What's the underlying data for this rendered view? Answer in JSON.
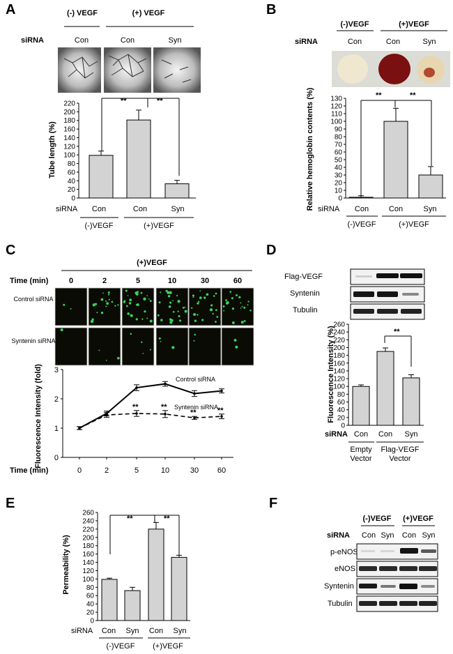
{
  "panelA": {
    "letter": "A",
    "minus_vegf": "(-) VEGF",
    "plus_vegf": "(+) VEGF",
    "sirna": "siRNA",
    "lanes": [
      "Con",
      "Con",
      "Syn"
    ],
    "group_minus": "(-)VEGF",
    "group_plus": "(+)VEGF",
    "sig": [
      "**",
      "**"
    ]
  },
  "panelB": {
    "letter": "B",
    "minus_vegf": "(-)VEGF",
    "plus_vegf": "(+)VEGF",
    "sirna": "siRNA",
    "lanes": [
      "Con",
      "Con",
      "Syn"
    ],
    "group_minus": "(-)VEGF",
    "group_plus": "(+)VEGF",
    "sig": [
      "**",
      "**"
    ]
  },
  "panelC": {
    "letter": "C",
    "plus_vegf": "(+)VEGF",
    "time_label": "Time (min)",
    "row_control": "Control siRNA",
    "row_syntenin": "Syntenin siRNA",
    "series_control": "Control siRNA",
    "series_syntenin": "Syntenin siRNA",
    "sig": "**"
  },
  "panelD": {
    "letter": "D",
    "blots": [
      "Flag-VEGF",
      "Syntenin",
      "Tubulin"
    ],
    "sirna": "siRNA",
    "lanes": [
      "Con",
      "Con",
      "Syn"
    ],
    "group_empty": "Empty\nVector",
    "group_flag": "Flag-VEGF\nVector",
    "sig": "**"
  },
  "panelE": {
    "letter": "E",
    "sirna": "siRNA",
    "lanes": [
      "Con",
      "Syn",
      "Con",
      "Syn"
    ],
    "group_minus": "(-)VEGF",
    "group_plus": "(+)VEGF",
    "sig": [
      "**",
      "**"
    ]
  },
  "panelF": {
    "letter": "F",
    "minus_vegf": "(-)VEGF",
    "plus_vegf": "(+)VEGF",
    "sirna": "siRNA",
    "lanes": [
      "Con",
      "Syn",
      "Con",
      "Syn"
    ],
    "blots": [
      "p-eNOS",
      "eNOS",
      "Syntenin",
      "Tubulin"
    ]
  },
  "chart_data": [
    {
      "id": "A",
      "type": "bar",
      "categories": [
        "Con",
        "Con",
        "Syn"
      ],
      "values": [
        99,
        181,
        33
      ],
      "errors": [
        10,
        23,
        8
      ],
      "ylabel": "Tube length (%)",
      "ylim": [
        0,
        220
      ],
      "yticks": [
        0,
        20,
        40,
        60,
        80,
        100,
        120,
        140,
        160,
        180,
        200,
        220
      ]
    },
    {
      "id": "B",
      "type": "bar",
      "categories": [
        "Con",
        "Con",
        "Syn"
      ],
      "values": [
        1,
        100,
        30
      ],
      "errors": [
        2,
        17,
        11
      ],
      "ylabel": "Relative hemoglobin contents (%)",
      "ylim": [
        0,
        130
      ],
      "yticks": [
        0,
        10,
        20,
        30,
        40,
        50,
        60,
        70,
        80,
        90,
        100,
        110,
        120,
        130
      ]
    },
    {
      "id": "C",
      "type": "line",
      "x": [
        "0",
        "2",
        "5",
        "10",
        "30",
        "60"
      ],
      "series": [
        {
          "name": "Control siRNA",
          "values": [
            1.0,
            1.5,
            2.38,
            2.51,
            2.18,
            2.27
          ],
          "errors": [
            0.05,
            0.08,
            0.1,
            0.08,
            0.1,
            0.07
          ]
        },
        {
          "name": "Syntenin siRNA",
          "values": [
            1.0,
            1.45,
            1.5,
            1.48,
            1.35,
            1.4
          ],
          "errors": [
            0.05,
            0.08,
            0.1,
            0.12,
            0.05,
            0.08
          ]
        }
      ],
      "xlabel": "Time (min)",
      "ylabel": "Fluorescence Intensity (fold)",
      "ylim": [
        0,
        3
      ],
      "yticks": [
        0,
        1,
        2,
        3
      ]
    },
    {
      "id": "D",
      "type": "bar",
      "categories": [
        "Con",
        "Con",
        "Syn"
      ],
      "values": [
        100,
        190,
        122
      ],
      "errors": [
        4,
        9,
        8
      ],
      "ylabel": "Fluorescence Intensity (%)",
      "ylim": [
        0,
        260
      ],
      "yticks": [
        0,
        20,
        40,
        60,
        80,
        100,
        120,
        140,
        160,
        180,
        200,
        220,
        240,
        260
      ]
    },
    {
      "id": "E",
      "type": "bar",
      "categories": [
        "Con",
        "Syn",
        "Con",
        "Syn"
      ],
      "values": [
        99,
        72,
        220,
        152
      ],
      "errors": [
        3,
        8,
        16,
        5
      ],
      "ylabel": "Permeability (%)",
      "ylim": [
        0,
        260
      ],
      "yticks": [
        0,
        20,
        40,
        60,
        80,
        100,
        120,
        140,
        160,
        180,
        200,
        220,
        240,
        260
      ]
    }
  ]
}
